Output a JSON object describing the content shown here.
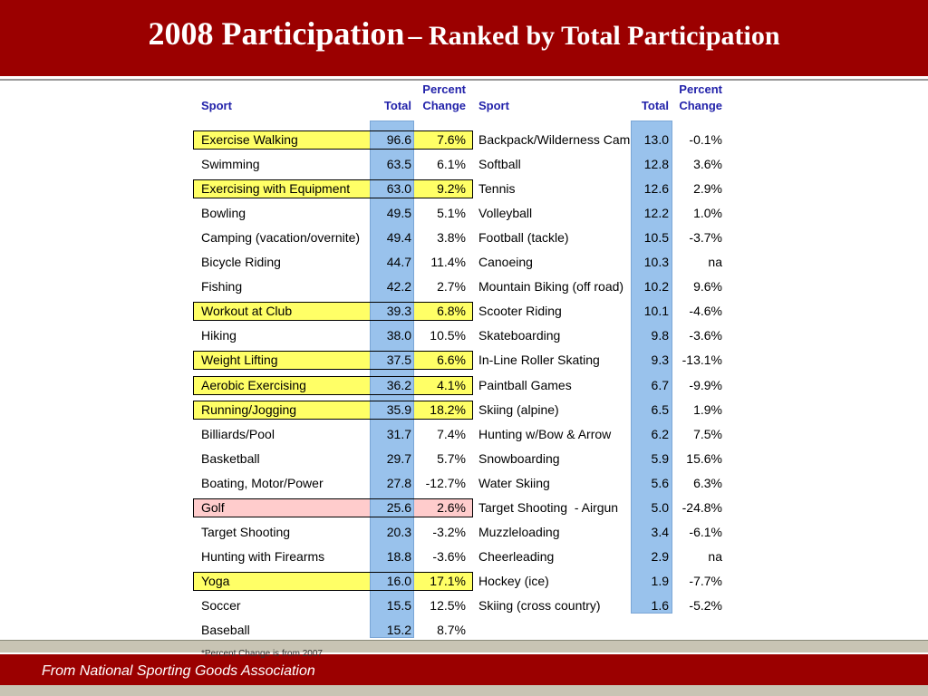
{
  "header": {
    "title": "2008 Participation",
    "subtitle": "– Ranked by Total Participation"
  },
  "table": {
    "headers": [
      "Sport",
      "Total",
      "Percent Change",
      "Sport",
      "Total",
      "Percent Change"
    ],
    "left": [
      [
        "Exercise Walking",
        "96.6",
        "7.6%",
        "yellow"
      ],
      [
        "Swimming",
        "63.5",
        "6.1%",
        null
      ],
      [
        "Exercising with Equipment",
        "63.0",
        "9.2%",
        "yellow"
      ],
      [
        "Bowling",
        "49.5",
        "5.1%",
        null
      ],
      [
        "Camping (vacation/overnite)",
        "49.4",
        "3.8%",
        null
      ],
      [
        "Bicycle Riding",
        "44.7",
        "11.4%",
        null
      ],
      [
        "Fishing",
        "42.2",
        "2.7%",
        null
      ],
      [
        "Workout at Club",
        "39.3",
        "6.8%",
        "yellow"
      ],
      [
        "Hiking",
        "38.0",
        "10.5%",
        null
      ],
      [
        "Weight Lifting",
        "37.5",
        "6.6%",
        "yellow"
      ],
      [
        "Aerobic Exercising",
        "36.2",
        "4.1%",
        "yellow"
      ],
      [
        "Running/Jogging",
        "35.9",
        "18.2%",
        "yellow"
      ],
      [
        "Billiards/Pool",
        "31.7",
        "7.4%",
        null
      ],
      [
        "Basketball",
        "29.7",
        "5.7%",
        null
      ],
      [
        "Boating, Motor/Power",
        "27.8",
        "-12.7%",
        null
      ],
      [
        "Golf",
        "25.6",
        "2.6%",
        "pink"
      ],
      [
        "Target Shooting",
        "20.3",
        "-3.2%",
        null
      ],
      [
        "Hunting with Firearms",
        "18.8",
        "-3.6%",
        null
      ],
      [
        "Yoga",
        "16.0",
        "17.1%",
        "yellow"
      ],
      [
        "Soccer",
        "15.5",
        "12.5%",
        null
      ],
      [
        "Baseball",
        "15.2",
        "8.7%",
        null
      ]
    ],
    "right": [
      [
        "Backpack/Wilderness Camp",
        "13.0",
        "-0.1%"
      ],
      [
        "Softball",
        "12.8",
        "3.6%"
      ],
      [
        "Tennis",
        "12.6",
        "2.9%"
      ],
      [
        "Volleyball",
        "12.2",
        "1.0%"
      ],
      [
        "Football (tackle)",
        "10.5",
        "-3.7%"
      ],
      [
        "Canoeing",
        "10.3",
        "na"
      ],
      [
        "Mountain Biking (off road)",
        "10.2",
        "9.6%"
      ],
      [
        "Scooter Riding",
        "10.1",
        "-4.6%"
      ],
      [
        "Skateboarding",
        "9.8",
        "-3.6%"
      ],
      [
        "In-Line Roller Skating",
        "9.3",
        "-13.1%"
      ],
      [
        "Paintball Games",
        "6.7",
        "-9.9%"
      ],
      [
        "Skiing (alpine)",
        "6.5",
        "1.9%"
      ],
      [
        "Hunting w/Bow & Arrow",
        "6.2",
        "7.5%"
      ],
      [
        "Snowboarding",
        "5.9",
        "15.6%"
      ],
      [
        "Water Skiing",
        "5.6",
        "6.3%"
      ],
      [
        "Target Shooting  - Airgun",
        "5.0",
        "-24.8%"
      ],
      [
        "Muzzleloading",
        "3.4",
        "-6.1%"
      ],
      [
        "Cheerleading",
        "2.9",
        "na"
      ],
      [
        "Hockey (ice)",
        "1.9",
        "-7.7%"
      ],
      [
        "Skiing (cross country)",
        "1.6",
        "-5.2%"
      ]
    ],
    "footnote": "*Percent Change is from 2007"
  },
  "footer": {
    "source": "From National Sporting Goods Association"
  }
}
